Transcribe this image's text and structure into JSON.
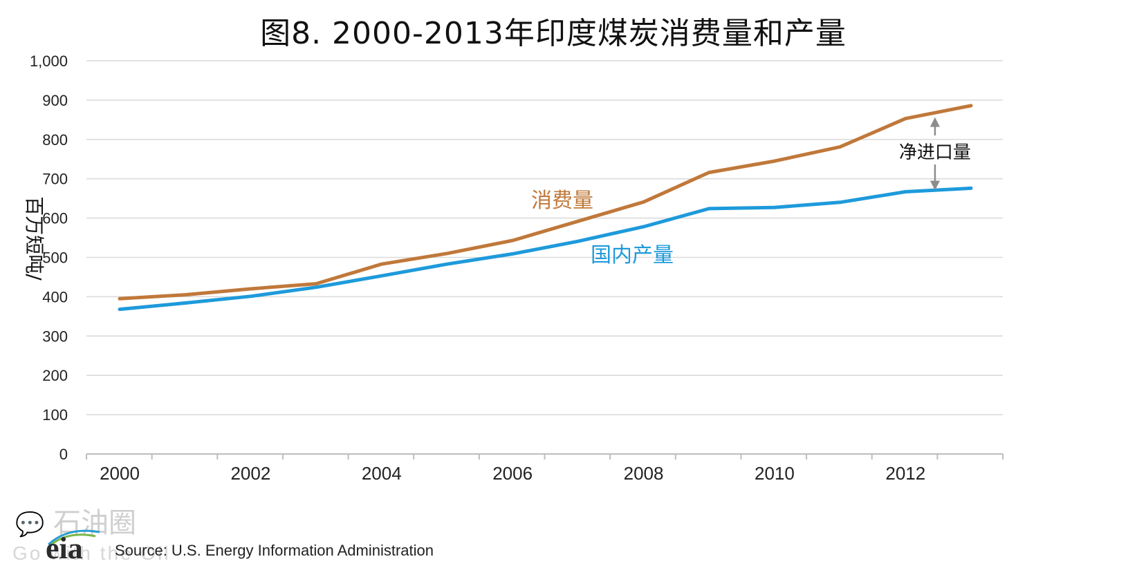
{
  "watermark": {
    "text": "石油圈",
    "sub": "Go with the Oil"
  },
  "logo": {
    "text": "eia"
  },
  "source": "Source: U.S. Energy Information Administration",
  "colors": {
    "consumption": "#C0783A",
    "production": "#1E9ADB",
    "grid": "#D9D9D9",
    "arrow": "#8C8C8C"
  },
  "chart_data": {
    "type": "line",
    "title": "图8. 2000-2013年印度煤炭消费量和产量",
    "ylabel": "百万短吨/",
    "ylim": [
      0,
      1000
    ],
    "yticks": [
      0,
      100,
      200,
      300,
      400,
      500,
      600,
      700,
      800,
      900,
      1000
    ],
    "ytick_labels": [
      "0",
      "100",
      "200",
      "300",
      "400",
      "500",
      "600",
      "700",
      "800",
      "900",
      "1,000"
    ],
    "xlim": [
      2000,
      2013
    ],
    "xtick_labels": [
      "2000",
      "2002",
      "2004",
      "2006",
      "2008",
      "2010",
      "2012"
    ],
    "grid": true,
    "x": [
      2000,
      2001,
      2002,
      2003,
      2004,
      2005,
      2006,
      2007,
      2008,
      2009,
      2010,
      2011,
      2012,
      2013
    ],
    "series": [
      {
        "name": "消费量",
        "values": [
          395,
          405,
          420,
          433,
          483,
          510,
          543,
          592,
          641,
          716,
          745,
          781,
          853,
          886
        ]
      },
      {
        "name": "国内产量",
        "values": [
          368,
          384,
          401,
          424,
          453,
          483,
          509,
          541,
          578,
          624,
          627,
          640,
          667,
          676
        ]
      }
    ],
    "annotations": [
      {
        "text": "净进口量",
        "x": 2012,
        "from": 853,
        "to": 667
      }
    ]
  }
}
